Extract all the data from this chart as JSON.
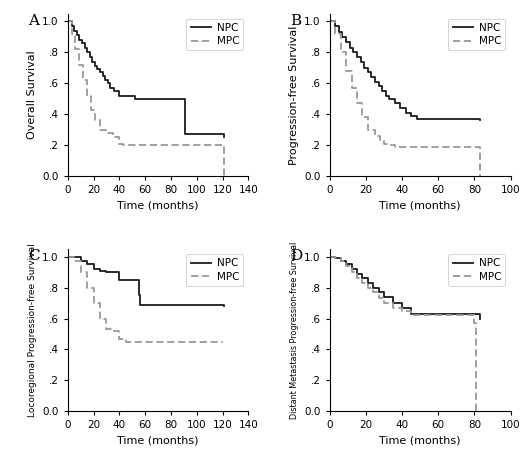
{
  "panels": [
    {
      "label": "A",
      "ylabel": "Overall Survival",
      "xlabel": "Time (months)",
      "xlim": [
        0,
        140
      ],
      "ylim": [
        0.0,
        1.05
      ],
      "xticks": [
        0,
        20,
        40,
        60,
        80,
        100,
        120,
        140
      ],
      "yticks": [
        0.0,
        0.2,
        0.4,
        0.6,
        0.8,
        1.0
      ],
      "ytick_labels": [
        "0.0",
        ".2",
        ".4",
        ".6",
        ".8",
        "1.0"
      ],
      "npc_x": [
        0,
        3,
        5,
        7,
        9,
        11,
        13,
        15,
        17,
        19,
        21,
        23,
        25,
        27,
        29,
        31,
        33,
        36,
        40,
        44,
        48,
        52,
        90,
        91,
        120,
        121
      ],
      "npc_y": [
        1.0,
        0.97,
        0.94,
        0.91,
        0.88,
        0.86,
        0.83,
        0.8,
        0.77,
        0.74,
        0.71,
        0.69,
        0.67,
        0.65,
        0.62,
        0.6,
        0.57,
        0.55,
        0.52,
        0.52,
        0.52,
        0.5,
        0.5,
        0.27,
        0.27,
        0.25
      ],
      "mpc_x": [
        0,
        3,
        6,
        9,
        12,
        15,
        18,
        21,
        25,
        30,
        35,
        40,
        43,
        120,
        121
      ],
      "mpc_y": [
        1.0,
        0.92,
        0.82,
        0.72,
        0.62,
        0.52,
        0.43,
        0.36,
        0.3,
        0.28,
        0.25,
        0.21,
        0.2,
        0.2,
        0.0
      ]
    },
    {
      "label": "B",
      "ylabel": "Progression-free Survival",
      "xlabel": "Time (months)",
      "xlim": [
        0,
        100
      ],
      "ylim": [
        0.0,
        1.05
      ],
      "xticks": [
        0,
        20,
        40,
        60,
        80,
        100
      ],
      "yticks": [
        0.0,
        0.2,
        0.4,
        0.6,
        0.8,
        1.0
      ],
      "ytick_labels": [
        "0.0",
        ".2",
        ".4",
        ".6",
        ".8",
        "1.0"
      ],
      "npc_x": [
        0,
        3,
        5,
        7,
        9,
        11,
        13,
        15,
        17,
        19,
        21,
        23,
        25,
        27,
        29,
        31,
        33,
        36,
        39,
        42,
        45,
        48,
        82,
        83
      ],
      "npc_y": [
        1.0,
        0.97,
        0.93,
        0.9,
        0.87,
        0.83,
        0.8,
        0.77,
        0.74,
        0.7,
        0.67,
        0.64,
        0.61,
        0.58,
        0.55,
        0.52,
        0.5,
        0.47,
        0.44,
        0.41,
        0.39,
        0.37,
        0.37,
        0.36
      ],
      "mpc_x": [
        0,
        3,
        6,
        9,
        12,
        15,
        18,
        21,
        25,
        28,
        30,
        33,
        36,
        82,
        83
      ],
      "mpc_y": [
        1.0,
        0.92,
        0.8,
        0.68,
        0.57,
        0.47,
        0.38,
        0.3,
        0.26,
        0.23,
        0.21,
        0.2,
        0.19,
        0.19,
        0.0
      ]
    },
    {
      "label": "C",
      "ylabel": "Locoregional Progression-free Survival",
      "xlabel": "Time (months)",
      "xlim": [
        0,
        140
      ],
      "ylim": [
        0.0,
        1.05
      ],
      "xticks": [
        0,
        20,
        40,
        60,
        80,
        100,
        120,
        140
      ],
      "yticks": [
        0.0,
        0.2,
        0.4,
        0.6,
        0.8,
        1.0
      ],
      "ytick_labels": [
        "0.0",
        ".2",
        ".4",
        ".6",
        ".8",
        "1.0"
      ],
      "npc_x": [
        0,
        5,
        10,
        15,
        20,
        25,
        30,
        35,
        40,
        55,
        56,
        120,
        121
      ],
      "npc_y": [
        1.0,
        1.0,
        0.97,
        0.95,
        0.92,
        0.91,
        0.9,
        0.9,
        0.85,
        0.75,
        0.69,
        0.69,
        0.68
      ],
      "mpc_x": [
        0,
        5,
        10,
        15,
        20,
        25,
        30,
        35,
        40,
        45,
        50,
        120
      ],
      "mpc_y": [
        1.0,
        0.97,
        0.9,
        0.8,
        0.7,
        0.6,
        0.53,
        0.52,
        0.47,
        0.45,
        0.45,
        0.45
      ]
    },
    {
      "label": "D",
      "ylabel": "Distant Metastasis Progression-free Survival",
      "xlabel": "Time (months)",
      "xlim": [
        0,
        100
      ],
      "ylim": [
        0.0,
        1.05
      ],
      "xticks": [
        0,
        20,
        40,
        60,
        80,
        100
      ],
      "yticks": [
        0.0,
        0.2,
        0.4,
        0.6,
        0.8,
        1.0
      ],
      "ytick_labels": [
        "0.0",
        ".2",
        ".4",
        ".6",
        ".8",
        "1.0"
      ],
      "npc_x": [
        0,
        3,
        6,
        9,
        12,
        15,
        18,
        21,
        24,
        27,
        30,
        35,
        40,
        45,
        82,
        83
      ],
      "npc_y": [
        1.0,
        0.99,
        0.97,
        0.95,
        0.92,
        0.89,
        0.86,
        0.83,
        0.8,
        0.77,
        0.74,
        0.7,
        0.67,
        0.63,
        0.63,
        0.6
      ],
      "mpc_x": [
        0,
        3,
        6,
        9,
        12,
        15,
        18,
        21,
        24,
        27,
        30,
        35,
        40,
        45,
        80,
        81
      ],
      "mpc_y": [
        1.0,
        0.99,
        0.97,
        0.94,
        0.9,
        0.86,
        0.83,
        0.8,
        0.77,
        0.73,
        0.7,
        0.67,
        0.65,
        0.62,
        0.57,
        0.0
      ]
    }
  ],
  "npc_color": "#1a1a1a",
  "mpc_color": "#999999",
  "npc_linewidth": 1.3,
  "mpc_linewidth": 1.3,
  "npc_linestyle": "-",
  "mpc_linestyle": "--",
  "label_fontsize": 8,
  "tick_fontsize": 7.5,
  "legend_fontsize": 7.5,
  "panel_label_fontsize": 11,
  "background_color": "#ffffff"
}
